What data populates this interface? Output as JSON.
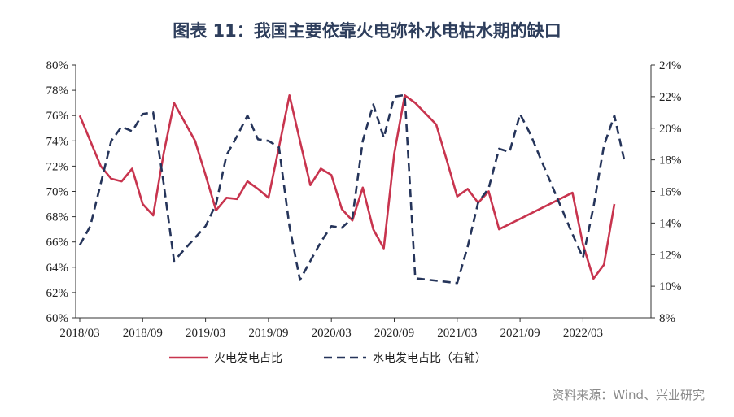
{
  "title": "图表 11：我国主要依靠火电弥补水电枯水期的缺口",
  "source": "资料来源：Wind、兴业研究",
  "colors": {
    "series1": "#c8344e",
    "series2": "#25345a",
    "axis": "#333333",
    "title": "#2e3e5c"
  },
  "chart_data": {
    "type": "line",
    "x_ticks": [
      "2018/03",
      "2018/09",
      "2019/03",
      "2019/09",
      "2020/03",
      "2020/09",
      "2021/03",
      "2021/09",
      "2022/03"
    ],
    "x_start": "2018/03",
    "x_end": "2022/08",
    "y_left": {
      "ticks": [
        "60%",
        "62%",
        "64%",
        "66%",
        "68%",
        "70%",
        "72%",
        "74%",
        "76%",
        "78%",
        "80%"
      ],
      "ylim": [
        60,
        80
      ]
    },
    "y_right": {
      "ticks": [
        "8%",
        "10%",
        "12%",
        "14%",
        "16%",
        "18%",
        "20%",
        "22%",
        "24%"
      ],
      "ylim": [
        8,
        24
      ]
    },
    "legend": {
      "position": "bottom"
    },
    "series": [
      {
        "name": "火电发电占比",
        "axis": "left",
        "style": "solid",
        "points": [
          [
            "2018/03",
            76.0
          ],
          [
            "2018/04",
            74.0
          ],
          [
            "2018/05",
            72.0
          ],
          [
            "2018/06",
            71.0
          ],
          [
            "2018/07",
            70.8
          ],
          [
            "2018/08",
            71.8
          ],
          [
            "2018/09",
            69.0
          ],
          [
            "2018/10",
            68.1
          ],
          [
            "2018/11",
            73.0
          ],
          [
            "2018/12",
            77.0
          ],
          [
            "2019/01",
            75.5
          ],
          [
            "2019/02",
            74.0
          ],
          [
            "2019/03",
            71.3
          ],
          [
            "2019/04",
            68.5
          ],
          [
            "2019/05",
            69.5
          ],
          [
            "2019/06",
            69.4
          ],
          [
            "2019/07",
            70.8
          ],
          [
            "2019/08",
            70.2
          ],
          [
            "2019/09",
            69.5
          ],
          [
            "2019/10",
            73.5
          ],
          [
            "2019/11",
            77.6
          ],
          [
            "2019/12",
            74.0
          ],
          [
            "2020/01",
            70.5
          ],
          [
            "2020/02",
            71.8
          ],
          [
            "2020/03",
            71.3
          ],
          [
            "2020/04",
            68.6
          ],
          [
            "2020/05",
            67.7
          ],
          [
            "2020/06",
            70.3
          ],
          [
            "2020/07",
            67.0
          ],
          [
            "2020/08",
            65.5
          ],
          [
            "2020/09",
            73.0
          ],
          [
            "2020/10",
            77.6
          ],
          [
            "2020/11",
            77.0
          ],
          [
            "2021/01",
            75.3
          ],
          [
            "2021/02",
            72.5
          ],
          [
            "2021/03",
            69.6
          ],
          [
            "2021/04",
            70.2
          ],
          [
            "2021/05",
            69.1
          ],
          [
            "2021/06",
            70.0
          ],
          [
            "2021/07",
            67.0
          ],
          [
            "2022/02",
            69.9
          ],
          [
            "2022/03",
            65.8
          ],
          [
            "2022/04",
            63.1
          ],
          [
            "2022/05",
            64.2
          ],
          [
            "2022/06",
            69.0
          ]
        ]
      },
      {
        "name": "水电发电占比（右轴）",
        "axis": "right",
        "style": "dashed",
        "points": [
          [
            "2018/03",
            12.6
          ],
          [
            "2018/04",
            13.8
          ],
          [
            "2018/05",
            16.5
          ],
          [
            "2018/06",
            19.2
          ],
          [
            "2018/07",
            20.1
          ],
          [
            "2018/08",
            19.8
          ],
          [
            "2018/09",
            20.9
          ],
          [
            "2018/10",
            21.0
          ],
          [
            "2018/11",
            16.5
          ],
          [
            "2018/12",
            11.6
          ],
          [
            "2019/03",
            13.8
          ],
          [
            "2019/04",
            15.2
          ],
          [
            "2019/05",
            18.3
          ],
          [
            "2019/06",
            19.5
          ],
          [
            "2019/07",
            20.8
          ],
          [
            "2019/08",
            19.3
          ],
          [
            "2019/09",
            19.2
          ],
          [
            "2019/10",
            18.8
          ],
          [
            "2019/11",
            13.8
          ],
          [
            "2019/12",
            10.4
          ],
          [
            "2020/01",
            11.6
          ],
          [
            "2020/02",
            12.8
          ],
          [
            "2020/03",
            13.8
          ],
          [
            "2020/04",
            13.7
          ],
          [
            "2020/05",
            14.3
          ],
          [
            "2020/06",
            19.2
          ],
          [
            "2020/07",
            21.5
          ],
          [
            "2020/08",
            19.4
          ],
          [
            "2020/09",
            22.0
          ],
          [
            "2020/10",
            22.1
          ],
          [
            "2020/11",
            10.5
          ],
          [
            "2021/03",
            10.2
          ],
          [
            "2021/04",
            12.5
          ],
          [
            "2021/05",
            15.3
          ],
          [
            "2021/06",
            16.2
          ],
          [
            "2021/07",
            18.7
          ],
          [
            "2021/08",
            18.5
          ],
          [
            "2021/09",
            20.9
          ],
          [
            "2021/10",
            19.6
          ],
          [
            "2021/11",
            18.0
          ],
          [
            "2022/02",
            13.3
          ],
          [
            "2022/03",
            11.8
          ],
          [
            "2022/04",
            15.0
          ],
          [
            "2022/05",
            18.9
          ],
          [
            "2022/06",
            20.8
          ],
          [
            "2022/07",
            17.8
          ]
        ]
      }
    ]
  }
}
